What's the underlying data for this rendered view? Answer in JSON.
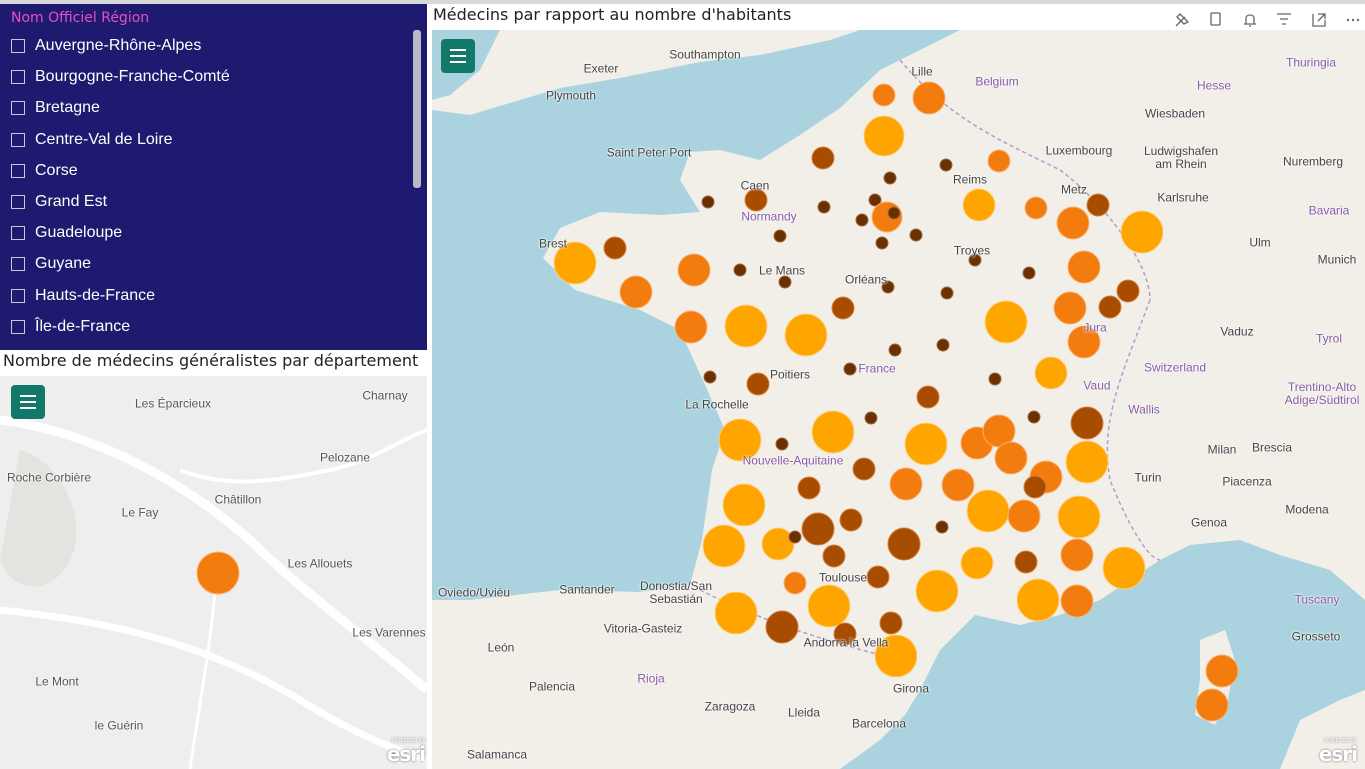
{
  "slicer": {
    "title": "Nom Officiel Région",
    "items": [
      "Auvergne-Rhône-Alpes",
      "Bourgogne-Franche-Comté",
      "Bretagne",
      "Centre-Val de Loire",
      "Corse",
      "Grand Est",
      "Guadeloupe",
      "Guyane",
      "Hauts-de-France",
      "Île-de-France"
    ]
  },
  "small_map": {
    "title": "Nombre de médecins généralistes par département",
    "labels": [
      "Les Éparcieux",
      "Charnay",
      "Pelozane",
      "Roche Corbière",
      "Châtillon",
      "Le Fay",
      "Les Allouets",
      "Les Varennes",
      "Le Mont",
      "le Guérin"
    ],
    "attribution": {
      "powered": "POWERED BY",
      "logo": "esri"
    }
  },
  "main_map": {
    "title": "Médecins par rapport au nombre d'habitants",
    "labels": [
      "Lille",
      "Belgium",
      "Southampton",
      "Exeter",
      "Plymouth",
      "Saint Peter Port",
      "Caen",
      "Normandy",
      "Reims",
      "Luxembourg",
      "Wiesbaden",
      "Ludwigshafen am Rhein",
      "Metz",
      "Karlsruhe",
      "Nuremberg",
      "Thuringia",
      "Hesse",
      "Bavaria",
      "Ulm",
      "Munich",
      "Troyes",
      "Le Mans",
      "Orléans",
      "Brest",
      "Vaduz",
      "Tyrol",
      "Switzerland",
      "Jura",
      "Vaud",
      "Wallis",
      "Trentino-Alto Adige/Südtirol",
      "Poitiers",
      "La Rochelle",
      "France",
      "Nouvelle-Aquitaine",
      "Milan",
      "Brescia",
      "Turin",
      "Piacenza",
      "Genoa",
      "Modena",
      "Tuscany",
      "Grosseto",
      "Toulouse",
      "Donostia/San Sebastián",
      "Santander",
      "Oviedo/Uviéu",
      "Vitoria-Gasteiz",
      "León",
      "Palencia",
      "Rioja",
      "Zaragoza",
      "Lleida",
      "Barcelona",
      "Girona",
      "Salamanca",
      "Andorra la Vella"
    ],
    "attribution": {
      "powered": "POWERED BY",
      "logo": "esri"
    }
  }
}
